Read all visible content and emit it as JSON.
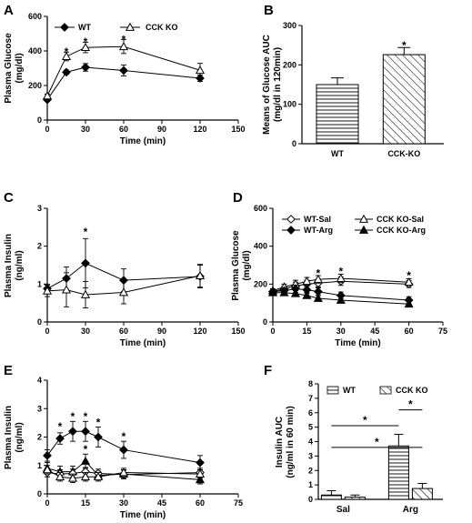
{
  "chart_data": [
    {
      "panel": "A",
      "type": "line",
      "xlabel": "Time (min)",
      "ylabel": "Plasma Glucose (mg/dl)",
      "xlim": [
        0,
        150
      ],
      "ylim": [
        0,
        600
      ],
      "xticks": [
        "0",
        "30",
        "60",
        "90",
        "120",
        "150"
      ],
      "yticks": [
        "0",
        "200",
        "400",
        "600"
      ],
      "legend": "top-left",
      "series": [
        {
          "name": "WT",
          "marker": "diamond-filled",
          "x": [
            0,
            15,
            30,
            60,
            120
          ],
          "y": [
            118,
            277,
            305,
            287,
            242
          ],
          "err": [
            8,
            12,
            22,
            32,
            18
          ]
        },
        {
          "name": "CCK KO",
          "marker": "triangle-open",
          "x": [
            0,
            15,
            30,
            60,
            120
          ],
          "y": [
            140,
            368,
            420,
            425,
            288
          ],
          "err": [
            10,
            25,
            30,
            40,
            40
          ]
        }
      ],
      "annotations": [
        {
          "text": "*",
          "x": 15,
          "y": 400
        },
        {
          "text": "*",
          "x": 30,
          "y": 458
        },
        {
          "text": "*",
          "x": 60,
          "y": 472
        }
      ]
    },
    {
      "panel": "B",
      "type": "bar",
      "ylabel": "Means of Glucose AUC (mg/dl in 120min)",
      "ylim": [
        0,
        300
      ],
      "yticks": [
        "0",
        "100",
        "200",
        "300"
      ],
      "categories": [
        "WT",
        "CCK-KO"
      ],
      "values": [
        150,
        226
      ],
      "err": [
        17,
        18
      ],
      "annotations": [
        {
          "text": "*",
          "x": "CCK-KO",
          "y": 252
        }
      ]
    },
    {
      "panel": "C",
      "type": "line",
      "xlabel": "Time (min)",
      "ylabel": "Plasma Insulin (ng/ml)",
      "xlim": [
        0,
        150
      ],
      "ylim": [
        0,
        3
      ],
      "xticks": [
        "0",
        "30",
        "60",
        "90",
        "120",
        "150"
      ],
      "yticks": [
        "0",
        "1",
        "2",
        "3"
      ],
      "series": [
        {
          "name": "",
          "marker": "diamond-filled",
          "x": [
            0,
            15,
            30,
            60,
            120
          ],
          "y": [
            0.88,
            1.15,
            1.55,
            1.1,
            1.2
          ],
          "err": [
            0.12,
            0.3,
            0.65,
            0.3,
            0.3
          ]
        },
        {
          "name": "",
          "marker": "triangle-open",
          "x": [
            0,
            15,
            30,
            60,
            120
          ],
          "y": [
            0.82,
            0.85,
            0.72,
            0.78,
            1.22
          ],
          "err": [
            0.15,
            0.45,
            0.35,
            0.3,
            0.3
          ]
        }
      ],
      "annotations": [
        {
          "text": "*",
          "x": 30,
          "y": 2.4
        }
      ]
    },
    {
      "panel": "D",
      "type": "line",
      "xlabel": "Time (min)",
      "ylabel": "Plasma Glucose (mg/dl)",
      "xlim": [
        0,
        75
      ],
      "ylim": [
        0,
        600
      ],
      "xticks": [
        "0",
        "15",
        "30",
        "45",
        "60",
        "75"
      ],
      "yticks": [
        "0",
        "200",
        "400",
        "600"
      ],
      "legend": "top",
      "series": [
        {
          "name": "WT-Sal",
          "marker": "diamond-open",
          "x": [
            0,
            5,
            10,
            15,
            20,
            30,
            60
          ],
          "y": [
            160,
            175,
            190,
            200,
            205,
            215,
            200
          ],
          "err": [
            10,
            15,
            20,
            20,
            20,
            22,
            18
          ]
        },
        {
          "name": "CCK KO-Sal",
          "marker": "triangle-open",
          "x": [
            0,
            5,
            10,
            15,
            20,
            30,
            60
          ],
          "y": [
            165,
            185,
            200,
            215,
            225,
            230,
            210
          ],
          "err": [
            10,
            15,
            20,
            20,
            20,
            22,
            18
          ]
        },
        {
          "name": "WT-Arg",
          "marker": "diamond-filled",
          "x": [
            0,
            5,
            10,
            15,
            20,
            30,
            60
          ],
          "y": [
            160,
            165,
            175,
            170,
            160,
            140,
            115
          ],
          "err": [
            10,
            15,
            20,
            20,
            20,
            18,
            18
          ]
        },
        {
          "name": "CCK KO-Arg",
          "marker": "triangle-filled",
          "x": [
            0,
            5,
            10,
            15,
            20,
            30,
            60
          ],
          "y": [
            155,
            155,
            150,
            140,
            125,
            115,
            95
          ],
          "err": [
            10,
            15,
            15,
            15,
            15,
            15,
            15
          ]
        }
      ],
      "annotations": [
        {
          "text": "*",
          "x": 20,
          "y": 262
        },
        {
          "text": "*",
          "x": 30,
          "y": 272
        },
        {
          "text": "*",
          "x": 60,
          "y": 250
        }
      ]
    },
    {
      "panel": "E",
      "type": "line",
      "xlabel": "Time (min)",
      "ylabel": "Plasma Insulin (ng/ml)",
      "xlim": [
        0,
        75
      ],
      "ylim": [
        0,
        4
      ],
      "xticks": [
        "0",
        "15",
        "30",
        "45",
        "60",
        "75"
      ],
      "yticks": [
        "0",
        "1",
        "2",
        "3",
        "4"
      ],
      "series": [
        {
          "name": "",
          "marker": "diamond-filled",
          "x": [
            0,
            5,
            10,
            15,
            20,
            30,
            60
          ],
          "y": [
            1.35,
            1.95,
            2.2,
            2.2,
            2.0,
            1.55,
            1.1
          ],
          "err": [
            0.2,
            0.2,
            0.35,
            0.35,
            0.35,
            0.3,
            0.25
          ]
        },
        {
          "name": "",
          "marker": "triangle-filled",
          "x": [
            0,
            5,
            10,
            15,
            20,
            30,
            60
          ],
          "y": [
            0.9,
            0.78,
            0.78,
            1.15,
            0.65,
            0.7,
            0.5
          ],
          "err": [
            0.2,
            0.2,
            0.2,
            0.25,
            0.15,
            0.15,
            0.15
          ]
        },
        {
          "name": "",
          "marker": "diamond-open",
          "x": [
            0,
            5,
            10,
            15,
            20,
            30,
            60
          ],
          "y": [
            0.75,
            0.7,
            0.72,
            0.78,
            0.72,
            0.68,
            0.75
          ],
          "err": [
            0.15,
            0.15,
            0.15,
            0.15,
            0.15,
            0.15,
            0.15
          ]
        },
        {
          "name": "",
          "marker": "triangle-open",
          "x": [
            0,
            5,
            10,
            15,
            20,
            30,
            60
          ],
          "y": [
            0.85,
            0.6,
            0.55,
            0.6,
            0.6,
            0.75,
            0.7
          ],
          "err": [
            0.15,
            0.15,
            0.15,
            0.15,
            0.15,
            0.15,
            0.15
          ]
        }
      ],
      "annotations": [
        {
          "text": "*",
          "x": 5,
          "y": 2.4
        },
        {
          "text": "*",
          "x": 10,
          "y": 2.75
        },
        {
          "text": "*",
          "x": 15,
          "y": 2.75
        },
        {
          "text": "*",
          "x": 20,
          "y": 2.55
        },
        {
          "text": "*",
          "x": 30,
          "y": 2.05
        },
        {
          "text": "*",
          "x": 15,
          "y": 1.6
        }
      ]
    },
    {
      "panel": "F",
      "type": "bar",
      "ylabel": "Insulin AUC (ng/ml in 60 min)",
      "ylim": [
        0,
        8
      ],
      "yticks": [
        "0",
        "1",
        "2",
        "3",
        "4",
        "5",
        "6",
        "7",
        "8"
      ],
      "categories": [
        "Sal",
        "Arg"
      ],
      "legend": "top-left",
      "series": [
        {
          "name": "WT",
          "pattern": "horizontal",
          "values": [
            0.3,
            3.7
          ],
          "err": [
            0.3,
            0.8
          ]
        },
        {
          "name": "CCK KO",
          "pattern": "diagonal",
          "values": [
            0.15,
            0.75
          ],
          "err": [
            0.15,
            0.35
          ]
        }
      ],
      "annotations": [
        {
          "text": "*",
          "from": [
            "Sal",
            "WT"
          ],
          "to": [
            "Arg",
            "WT"
          ],
          "y": 5.1
        },
        {
          "text": "*",
          "from": [
            "Sal",
            "WT"
          ],
          "to": [
            "Arg",
            "CCK KO"
          ],
          "y": 3.6
        },
        {
          "text": "*",
          "from": [
            "Arg",
            "WT"
          ],
          "to": [
            "Arg",
            "CCK KO"
          ],
          "y": 6.2
        }
      ]
    }
  ]
}
